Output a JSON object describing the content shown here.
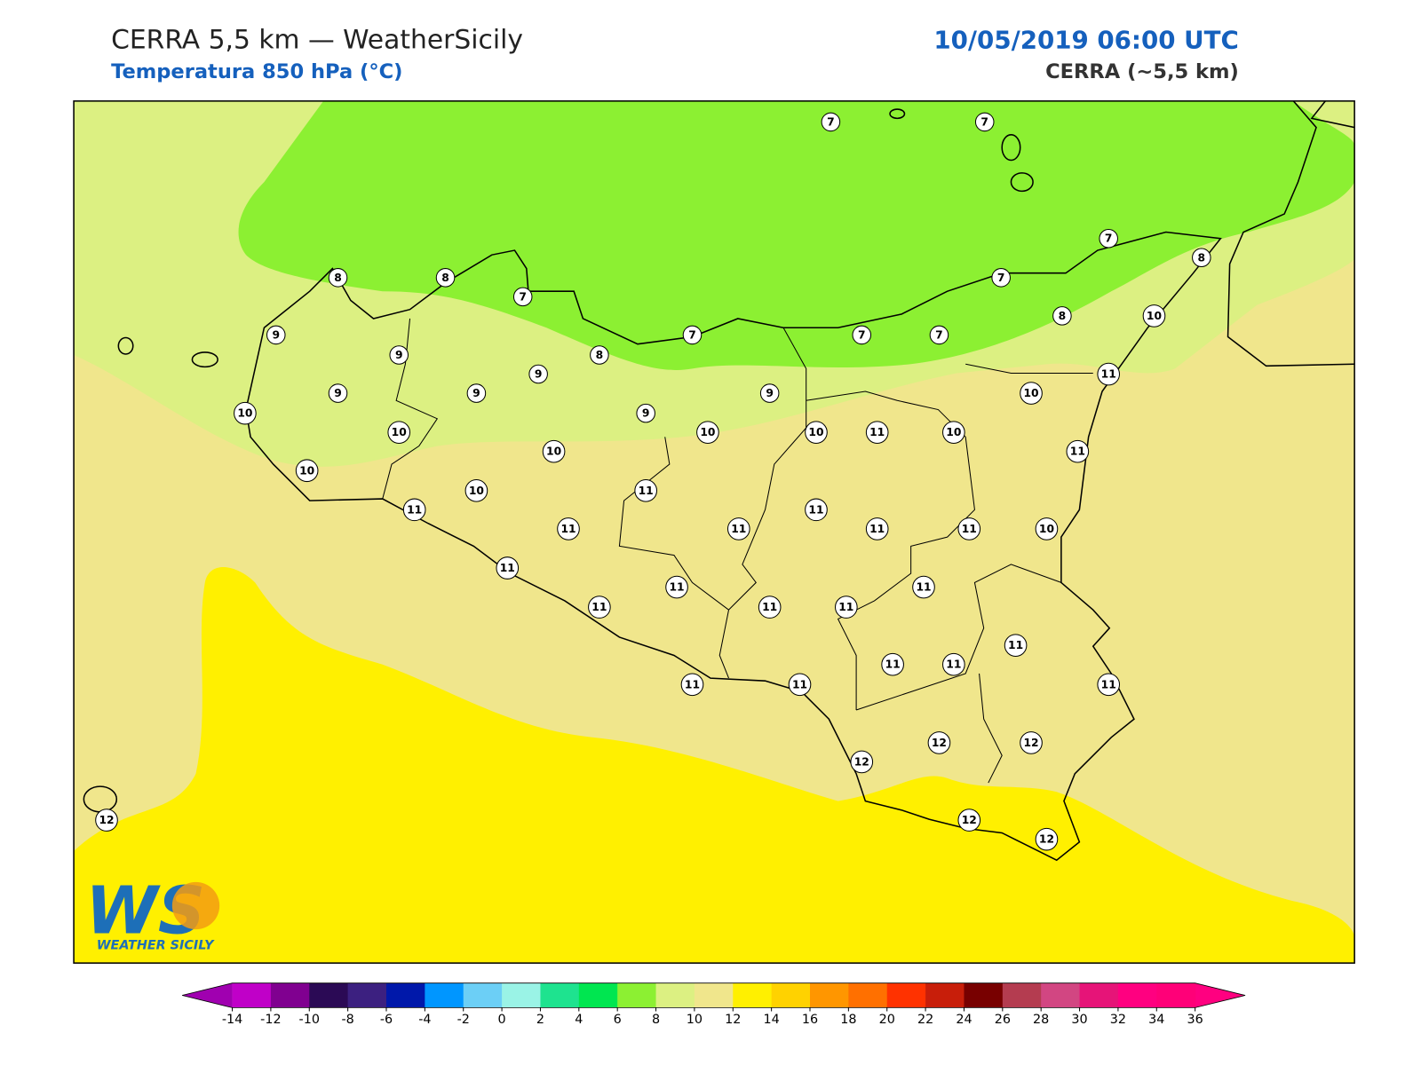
{
  "header": {
    "title": "CERRA 5,5 km — WeatherSicily",
    "subtitle": "Temperatura 850 hPa (°C)",
    "datetime": "10/05/2019 06:00 UTC",
    "model": "CERRA (~5,5 km)"
  },
  "stations": [
    7,
    7,
    8,
    8,
    7,
    7,
    8,
    7,
    9,
    9,
    8,
    7,
    7,
    7,
    8,
    10,
    9,
    9,
    9,
    9,
    11,
    10,
    10,
    9,
    10,
    10,
    10,
    11,
    10,
    10,
    11,
    10,
    10,
    11,
    11,
    11,
    11,
    11,
    11,
    11,
    10,
    11,
    11,
    11,
    11,
    11,
    11,
    11,
    11,
    11,
    11,
    11,
    11,
    12,
    12,
    12,
    12,
    12,
    12
  ],
  "colorbar": {
    "ticks": [
      -14,
      -12,
      -10,
      -8,
      -6,
      -4,
      -2,
      0,
      2,
      4,
      6,
      8,
      10,
      12,
      14,
      16,
      18,
      20,
      22,
      24,
      26,
      28,
      30,
      32,
      34,
      36
    ],
    "colors": [
      "#c000c8",
      "#800090",
      "#2b0a55",
      "#3c2080",
      "#0018aa",
      "#0096ff",
      "#6ccff6",
      "#9af3e6",
      "#1ee38f",
      "#00e650",
      "#8cf032",
      "#dcf082",
      "#f0e68c",
      "#fff000",
      "#ffd200",
      "#ff9600",
      "#ff7000",
      "#ff3200",
      "#c81e0a",
      "#780000",
      "#b43c50",
      "#d24682",
      "#e61478",
      "#ff0080",
      "#ff0078"
    ],
    "under_color": "#a000b0",
    "over_color": "#ff0080"
  },
  "logo": {
    "mark": "WS",
    "name": "WEATHER SICILY"
  }
}
